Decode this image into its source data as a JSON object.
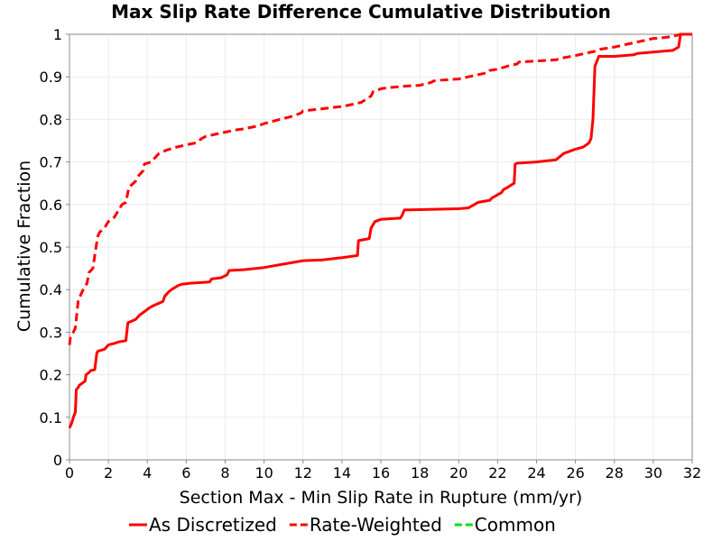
{
  "chart_data": {
    "type": "line",
    "title": "Max Slip Rate Difference Cumulative Distribution",
    "xlabel": "Section Max - Min Slip Rate in Rupture (mm/yr)",
    "ylabel": "Cumulative Fraction",
    "xlim": [
      0,
      32
    ],
    "ylim": [
      0,
      1
    ],
    "xticks": [
      0,
      2,
      4,
      6,
      8,
      10,
      12,
      14,
      16,
      18,
      20,
      22,
      24,
      26,
      28,
      30,
      32
    ],
    "yticks": [
      0,
      0.1,
      0.2,
      0.3,
      0.4,
      0.5,
      0.6,
      0.7,
      0.8,
      0.9,
      1
    ],
    "ytick_labels": [
      "0",
      "0.1",
      "0.2",
      "0.3",
      "0.4",
      "0.5",
      "0.6",
      "0.7",
      "0.8",
      "0.9",
      "1"
    ],
    "grid": true,
    "legend_position": "bottom",
    "series": [
      {
        "name": "As Discretized",
        "color": "#ff0000",
        "dash": "solid",
        "x": [
          0,
          0.1,
          0.2,
          0.3,
          0.35,
          0.45,
          0.5,
          0.8,
          0.85,
          1.0,
          1.1,
          1.3,
          1.4,
          1.45,
          1.8,
          2.0,
          2.4,
          2.5,
          2.9,
          3.0,
          3.4,
          3.6,
          3.9,
          4.1,
          4.3,
          4.8,
          4.9,
          5.1,
          5.3,
          5.6,
          5.8,
          6.2,
          7.2,
          7.3,
          7.8,
          8.1,
          8.2,
          9.0,
          10.0,
          11.0,
          12.0,
          13.0,
          14.0,
          14.8,
          14.85,
          15.4,
          15.5,
          15.7,
          16.0,
          17.0,
          17.1,
          17.2,
          18.0,
          19.0,
          20.0,
          20.5,
          21.0,
          21.6,
          21.7,
          22.2,
          22.3,
          22.5,
          22.85,
          22.9,
          23.0,
          24.0,
          25.0,
          25.4,
          26.0,
          26.4,
          26.7,
          26.8,
          26.9,
          27.0,
          27.2,
          28.0,
          29.0,
          29.2,
          30.0,
          31.0,
          31.3,
          31.4,
          32.0
        ],
        "y": [
          0.075,
          0.085,
          0.1,
          0.112,
          0.165,
          0.17,
          0.175,
          0.185,
          0.2,
          0.205,
          0.21,
          0.212,
          0.25,
          0.255,
          0.26,
          0.27,
          0.275,
          0.277,
          0.28,
          0.322,
          0.33,
          0.34,
          0.35,
          0.357,
          0.362,
          0.372,
          0.385,
          0.395,
          0.402,
          0.41,
          0.413,
          0.415,
          0.418,
          0.425,
          0.428,
          0.435,
          0.445,
          0.447,
          0.452,
          0.46,
          0.468,
          0.47,
          0.475,
          0.48,
          0.515,
          0.52,
          0.545,
          0.56,
          0.565,
          0.568,
          0.575,
          0.587,
          0.588,
          0.589,
          0.59,
          0.592,
          0.605,
          0.61,
          0.615,
          0.628,
          0.635,
          0.64,
          0.65,
          0.695,
          0.697,
          0.7,
          0.705,
          0.72,
          0.73,
          0.735,
          0.745,
          0.755,
          0.8,
          0.925,
          0.948,
          0.948,
          0.952,
          0.955,
          0.958,
          0.962,
          0.97,
          1.0,
          1.0
        ]
      },
      {
        "name": "Rate-Weighted",
        "color": "#ff0000",
        "dash": "dashed",
        "x": [
          0,
          0.05,
          0.2,
          0.3,
          0.45,
          0.5,
          0.7,
          0.9,
          1.0,
          1.2,
          1.3,
          1.45,
          1.55,
          1.8,
          2.0,
          2.3,
          2.5,
          2.7,
          2.9,
          3.05,
          3.4,
          3.5,
          3.8,
          3.85,
          4.2,
          4.5,
          4.6,
          5.0,
          5.5,
          6.0,
          6.5,
          6.8,
          7.0,
          7.5,
          8.0,
          8.5,
          9.0,
          9.7,
          10.0,
          10.8,
          11.0,
          11.5,
          11.9,
          12.0,
          13.0,
          13.5,
          14.0,
          14.5,
          15.0,
          15.5,
          15.6,
          15.9,
          16.0,
          16.5,
          17.0,
          17.2,
          18.0,
          18.6,
          18.7,
          19.0,
          20.0,
          20.5,
          21.0,
          21.5,
          21.6,
          22.0,
          22.5,
          23.0,
          23.1,
          24.0,
          25.0,
          25.4,
          26.0,
          26.5,
          27.0,
          27.3,
          28.0,
          28.5,
          29.0,
          29.5,
          30.0,
          30.5,
          31.0,
          31.4,
          32.0
        ],
        "y": [
          0.27,
          0.29,
          0.3,
          0.31,
          0.375,
          0.38,
          0.4,
          0.415,
          0.44,
          0.45,
          0.48,
          0.525,
          0.535,
          0.545,
          0.56,
          0.57,
          0.585,
          0.6,
          0.605,
          0.64,
          0.655,
          0.665,
          0.68,
          0.695,
          0.7,
          0.715,
          0.72,
          0.728,
          0.735,
          0.74,
          0.745,
          0.755,
          0.76,
          0.765,
          0.77,
          0.775,
          0.778,
          0.785,
          0.79,
          0.8,
          0.802,
          0.808,
          0.815,
          0.82,
          0.825,
          0.828,
          0.83,
          0.835,
          0.84,
          0.855,
          0.865,
          0.87,
          0.872,
          0.875,
          0.877,
          0.878,
          0.88,
          0.887,
          0.89,
          0.892,
          0.895,
          0.9,
          0.905,
          0.91,
          0.915,
          0.918,
          0.925,
          0.93,
          0.935,
          0.937,
          0.94,
          0.945,
          0.95,
          0.955,
          0.96,
          0.965,
          0.97,
          0.975,
          0.98,
          0.985,
          0.99,
          0.992,
          0.995,
          1.0,
          1.0
        ]
      },
      {
        "name": "Common",
        "color": "#00e000",
        "dash": "dashed",
        "x": [],
        "y": []
      }
    ]
  }
}
